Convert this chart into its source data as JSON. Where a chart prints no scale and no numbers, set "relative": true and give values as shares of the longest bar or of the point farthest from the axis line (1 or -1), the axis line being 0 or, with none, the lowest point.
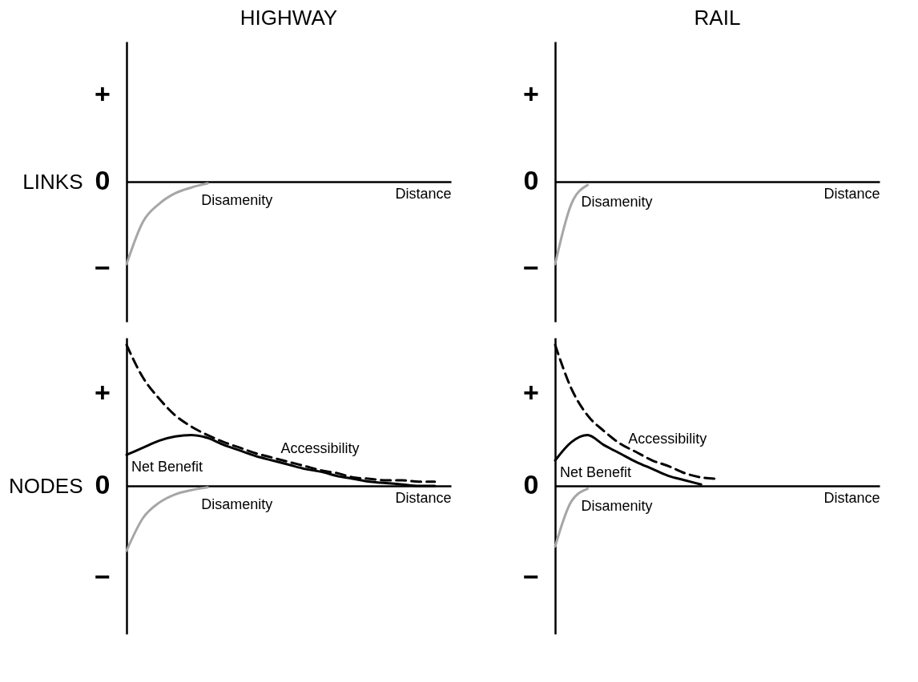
{
  "chart_data": [
    {
      "type": "line",
      "title": "HIGHWAY",
      "ylabel": "LINKS",
      "xlabel": "Distance",
      "relative": true,
      "categories": [
        null,
        null,
        null,
        null,
        null,
        null,
        null,
        null,
        null,
        null,
        null,
        null,
        null,
        null,
        null,
        null,
        null,
        null,
        null,
        null,
        null
      ],
      "tick_labels": false,
      "annotations": [
        "+",
        "0",
        "−"
      ],
      "series": [
        {
          "name": "Disamenity",
          "color": "#a6a6a6",
          "values": [
            -1,
            -0.49,
            -0.27,
            -0.14,
            -0.07,
            -0.02,
            null,
            null,
            null,
            null,
            null,
            null,
            null,
            null,
            null,
            null,
            null,
            null,
            null,
            null,
            null
          ]
        }
      ]
    },
    {
      "type": "line",
      "title": "RAIL",
      "xlabel": "Distance",
      "relative": true,
      "categories": [
        null,
        null,
        null,
        null,
        null,
        null,
        null,
        null,
        null,
        null,
        null,
        null,
        null,
        null,
        null,
        null,
        null,
        null,
        null,
        null,
        null
      ],
      "tick_labels": false,
      "annotations": [
        "+",
        "0",
        "−"
      ],
      "series": [
        {
          "name": "Disamenity",
          "color": "#a6a6a6",
          "values": [
            -1,
            -0.27,
            -0.04,
            null,
            null,
            null,
            null,
            null,
            null,
            null,
            null,
            null,
            null,
            null,
            null,
            null,
            null,
            null,
            null,
            null,
            null
          ]
        }
      ]
    },
    {
      "type": "line",
      "ylabel": "NODES",
      "xlabel": "Distance",
      "relative": true,
      "categories": [
        null,
        null,
        null,
        null,
        null,
        null,
        null,
        null,
        null,
        null,
        null,
        null,
        null,
        null,
        null,
        null,
        null,
        null,
        null,
        null,
        null
      ],
      "tick_labels": false,
      "annotations": [
        "+",
        "0",
        "−"
      ],
      "series": [
        {
          "name": "Accessibility",
          "color": "#000000",
          "line_style": "dashed",
          "values": [
            1,
            0.77,
            0.62,
            0.5,
            0.42,
            0.36,
            0.31,
            0.27,
            0.23,
            0.2,
            0.17,
            0.14,
            0.11,
            0.09,
            0.06,
            0.05,
            0.04,
            0.04,
            0.03,
            0.03,
            null
          ]
        },
        {
          "name": "Net Benefit",
          "color": "#000000",
          "values": [
            0.22,
            0.27,
            0.32,
            0.35,
            0.36,
            0.34,
            0.29,
            0.25,
            0.21,
            0.18,
            0.15,
            0.12,
            0.1,
            0.07,
            0.05,
            0.03,
            0.02,
            0.01,
            0,
            0,
            null
          ]
        },
        {
          "name": "Disamenity",
          "color": "#a6a6a6",
          "values": [
            -0.46,
            -0.23,
            -0.12,
            -0.06,
            -0.03,
            -0.01,
            null,
            null,
            null,
            null,
            null,
            null,
            null,
            null,
            null,
            null,
            null,
            null,
            null,
            null,
            null
          ]
        }
      ]
    },
    {
      "type": "line",
      "xlabel": "Distance",
      "relative": true,
      "categories": [
        null,
        null,
        null,
        null,
        null,
        null,
        null,
        null,
        null,
        null,
        null,
        null,
        null,
        null,
        null,
        null,
        null,
        null,
        null,
        null,
        null
      ],
      "tick_labels": false,
      "annotations": [
        "+",
        "0",
        "−"
      ],
      "series": [
        {
          "name": "Accessibility",
          "color": "#000000",
          "line_style": "dashed",
          "values": [
            1,
            0.69,
            0.5,
            0.39,
            0.3,
            0.24,
            0.18,
            0.14,
            0.09,
            0.06,
            0.05,
            null,
            null,
            null,
            null,
            null,
            null,
            null,
            null,
            null,
            null
          ]
        },
        {
          "name": "Net Benefit",
          "color": "#000000",
          "values": [
            0.18,
            0.31,
            0.36,
            0.29,
            0.23,
            0.17,
            0.12,
            0.07,
            0.04,
            0.01,
            null,
            null,
            null,
            null,
            null,
            null,
            null,
            null,
            null,
            null,
            null
          ]
        },
        {
          "name": "Disamenity",
          "color": "#a6a6a6",
          "values": [
            -0.43,
            -0.11,
            -0.02,
            null,
            null,
            null,
            null,
            null,
            null,
            null,
            null,
            null,
            null,
            null,
            null,
            null,
            null,
            null,
            null,
            null,
            null
          ]
        }
      ]
    }
  ]
}
